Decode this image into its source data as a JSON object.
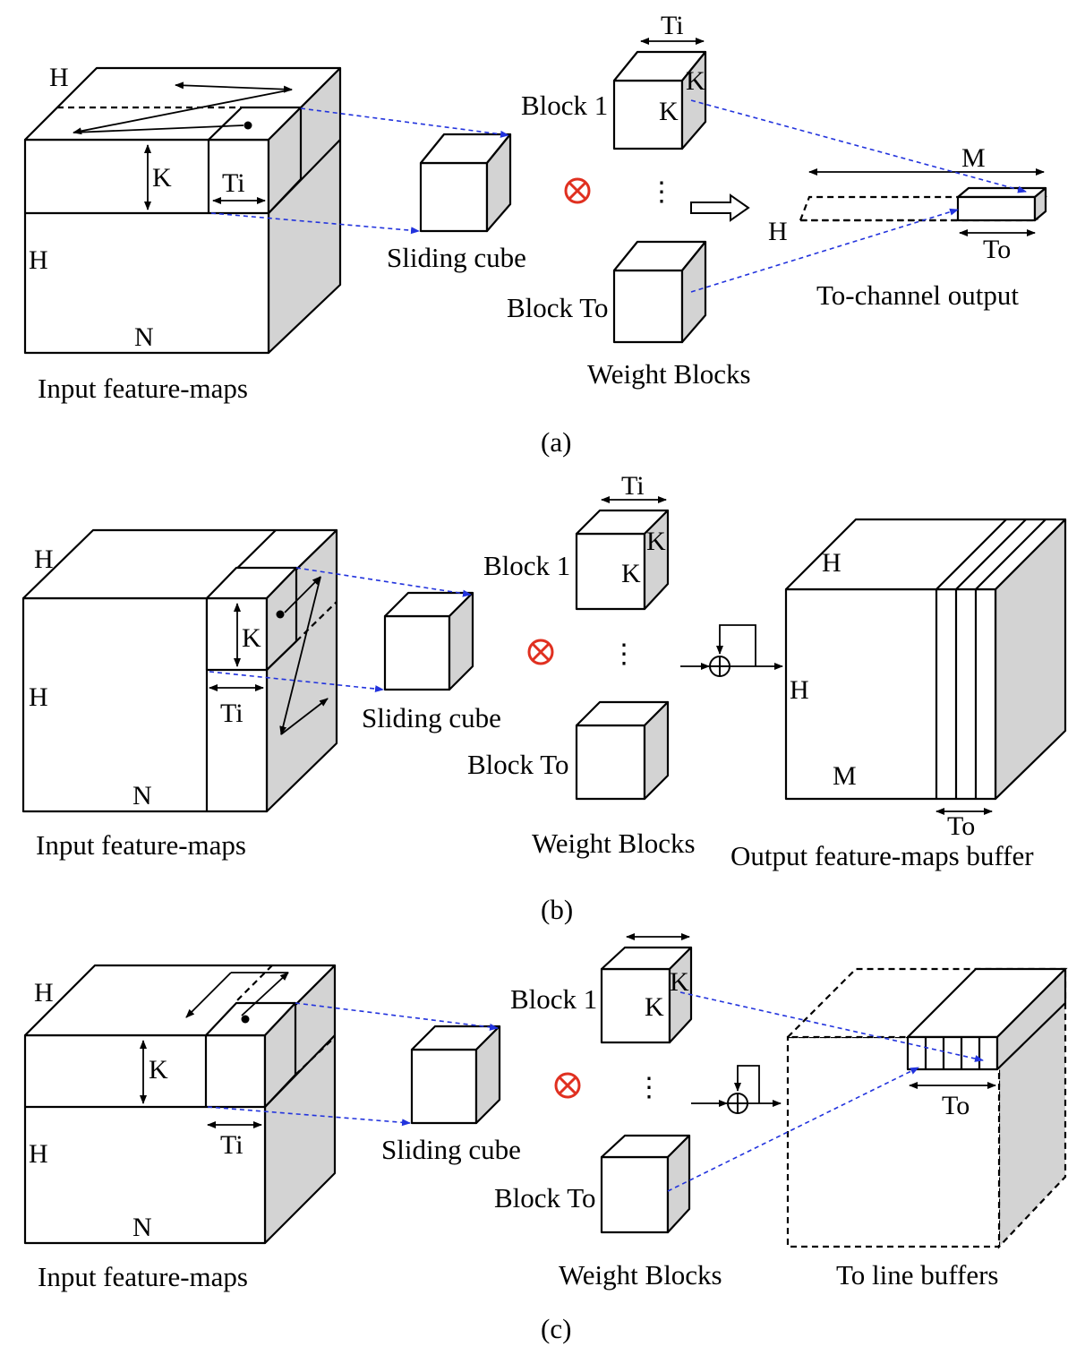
{
  "panels": [
    {
      "caption": "(a)",
      "input": {
        "label": "Input feature-maps",
        "h_top": "H",
        "h_side": "H",
        "n": "N",
        "k": "K",
        "ti": "Ti"
      },
      "sliding_cube": "Sliding cube",
      "weights": {
        "block_first": "Block 1",
        "block_last": "Block To",
        "ti": "Ti",
        "k_side": "K",
        "k_front": "K",
        "caption": "Weight Blocks",
        "ellipsis": "⋮"
      },
      "output": {
        "label": "To-channel output",
        "m": "M",
        "h": "H",
        "to": "To"
      }
    },
    {
      "caption": "(b)",
      "input": {
        "label": "Input feature-maps",
        "h_top": "H",
        "h_side": "H",
        "n": "N",
        "k": "K",
        "ti": "Ti"
      },
      "sliding_cube": "Sliding cube",
      "weights": {
        "block_first": "Block 1",
        "block_last": "Block To",
        "ti": "Ti",
        "k_side": "K",
        "k_front": "K",
        "caption": "Weight Blocks",
        "ellipsis": "⋮"
      },
      "output": {
        "label": "Output feature-maps buffer",
        "h_top": "H",
        "h_side": "H",
        "m": "M",
        "to": "To"
      }
    },
    {
      "caption": "(c)",
      "input": {
        "label": "Input feature-maps",
        "h_top": "H",
        "h_side": "H",
        "n": "N",
        "k": "K",
        "ti": "Ti"
      },
      "sliding_cube": "Sliding cube",
      "weights": {
        "block_first": "Block 1",
        "block_last": "Block To",
        "k_side": "K",
        "k_front": "K",
        "caption": "Weight Blocks",
        "ellipsis": "⋮"
      },
      "output": {
        "label": "To line buffers",
        "to": "To"
      }
    }
  ],
  "symbols": {
    "otimes": "otimes-icon",
    "oplus": "oplus-icon",
    "arrow": "hollow-arrow-icon"
  },
  "colors": {
    "link": "#2233dd",
    "operator": "#e03020",
    "side_fill": "#d3d3d3"
  }
}
